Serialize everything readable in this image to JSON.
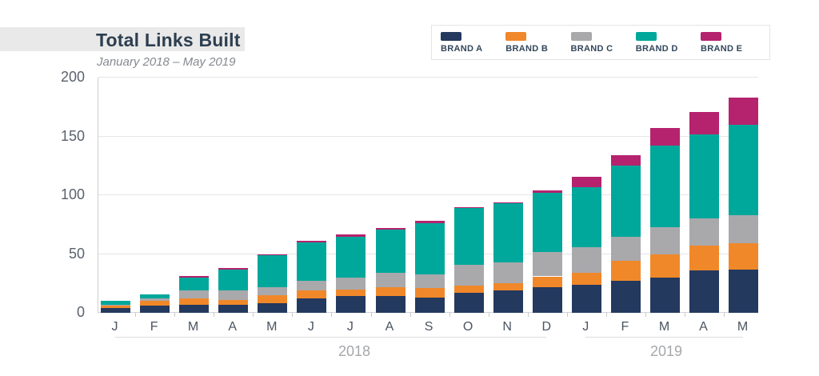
{
  "header": {
    "title": "Total Links Built",
    "subtitle": "January 2018 – May 2019"
  },
  "legend": {
    "items": [
      {
        "label": "BRAND A",
        "color": "#24395E"
      },
      {
        "label": "BRAND B",
        "color": "#F0882A"
      },
      {
        "label": "BRAND C",
        "color": "#A9A9AC"
      },
      {
        "label": "BRAND D",
        "color": "#00A79B"
      },
      {
        "label": "BRAND E",
        "color": "#B5236E"
      }
    ]
  },
  "chart_data": {
    "type": "bar",
    "stacked": true,
    "title": "Total Links Built",
    "subtitle": "January 2018 – May 2019",
    "categories": [
      "J",
      "F",
      "M",
      "A",
      "M",
      "J",
      "J",
      "A",
      "S",
      "O",
      "N",
      "D",
      "J",
      "F",
      "M",
      "A",
      "M"
    ],
    "year_groups": [
      {
        "label": "2018",
        "span": [
          0,
          11
        ]
      },
      {
        "label": "2019",
        "span": [
          12,
          16
        ]
      }
    ],
    "series": [
      {
        "name": "BRAND A",
        "color": "#24395E",
        "values": [
          4,
          6,
          7,
          7,
          8,
          12,
          14,
          14,
          13,
          17,
          19,
          22,
          24,
          27,
          30,
          36,
          37
        ]
      },
      {
        "name": "BRAND B",
        "color": "#F0882A",
        "values": [
          2,
          4,
          5,
          4,
          7,
          7,
          6,
          8,
          8,
          6,
          6,
          9,
          10,
          17,
          20,
          21,
          22
        ]
      },
      {
        "name": "BRAND C",
        "color": "#A9A9AC",
        "values": [
          1,
          2,
          7,
          8,
          7,
          8,
          10,
          12,
          12,
          18,
          18,
          21,
          22,
          21,
          23,
          23,
          24
        ]
      },
      {
        "name": "BRAND D",
        "color": "#00A79B",
        "values": [
          3,
          4,
          11,
          18,
          27,
          33,
          35,
          37,
          43,
          48,
          50,
          50,
          51,
          60,
          69,
          72,
          77
        ]
      },
      {
        "name": "BRAND E",
        "color": "#B5236E",
        "values": [
          0,
          0,
          1,
          1,
          1,
          1,
          2,
          1,
          2,
          1,
          1,
          2,
          9,
          9,
          15,
          19,
          23
        ]
      }
    ],
    "totals": [
      10,
      16,
      31,
      38,
      50,
      61,
      67,
      72,
      78,
      90,
      94,
      104,
      116,
      134,
      157,
      171,
      183
    ],
    "xlabel": "",
    "ylabel": "",
    "ylim": [
      0,
      200
    ],
    "yticks": [
      0,
      50,
      100,
      150,
      200
    ],
    "grid": true,
    "legend_position": "top-right"
  }
}
